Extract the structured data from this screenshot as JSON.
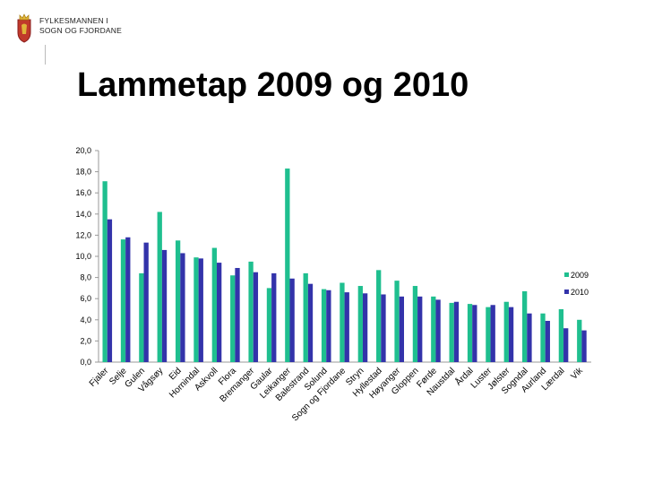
{
  "header": {
    "org_line1": "FYLKESMANNEN I",
    "org_line2": "SOGN OG FJORDANE",
    "crest_icon": "coat-of-arms-icon"
  },
  "chart_data": {
    "type": "bar",
    "title": "Lammetap 2009 og 2010",
    "xlabel": "",
    "ylabel": "",
    "ylim": [
      0,
      20
    ],
    "y_ticks": [
      "0,0",
      "2,0",
      "4,0",
      "6,0",
      "8,0",
      "10,0",
      "12,0",
      "14,0",
      "16,0",
      "18,0",
      "20,0"
    ],
    "legend_position": "right",
    "categories": [
      "Fjaler",
      "Selje",
      "Gulen",
      "Vågsøy",
      "Eid",
      "Hornindal",
      "Askvoll",
      "Flora",
      "Bremanger",
      "Gaular",
      "Leikanger",
      "Balestrand",
      "Solund",
      "Sogn og Fjordane",
      "Stryn",
      "Hyllestad",
      "Høyanger",
      "Gloppen",
      "Førde",
      "Naustdal",
      "Årdal",
      "Luster",
      "Jølster",
      "Sogndal",
      "Aurland",
      "Lærdal",
      "Vik"
    ],
    "series": [
      {
        "name": "2009",
        "color": "#1fbf8f",
        "values": [
          17.1,
          11.6,
          8.4,
          14.2,
          11.5,
          9.9,
          10.8,
          8.2,
          9.5,
          7.0,
          18.3,
          8.4,
          6.9,
          7.5,
          7.2,
          8.7,
          7.7,
          7.2,
          6.2,
          5.6,
          5.5,
          5.2,
          5.7,
          6.7,
          4.6,
          5.0,
          4.0
        ]
      },
      {
        "name": "2010",
        "color": "#3333aa",
        "values": [
          13.5,
          11.8,
          11.3,
          10.6,
          10.3,
          9.8,
          9.4,
          8.9,
          8.5,
          8.4,
          7.9,
          7.4,
          6.8,
          6.6,
          6.5,
          6.4,
          6.2,
          6.2,
          5.9,
          5.7,
          5.4,
          5.4,
          5.2,
          4.6,
          3.9,
          3.2,
          3.0
        ]
      }
    ]
  }
}
